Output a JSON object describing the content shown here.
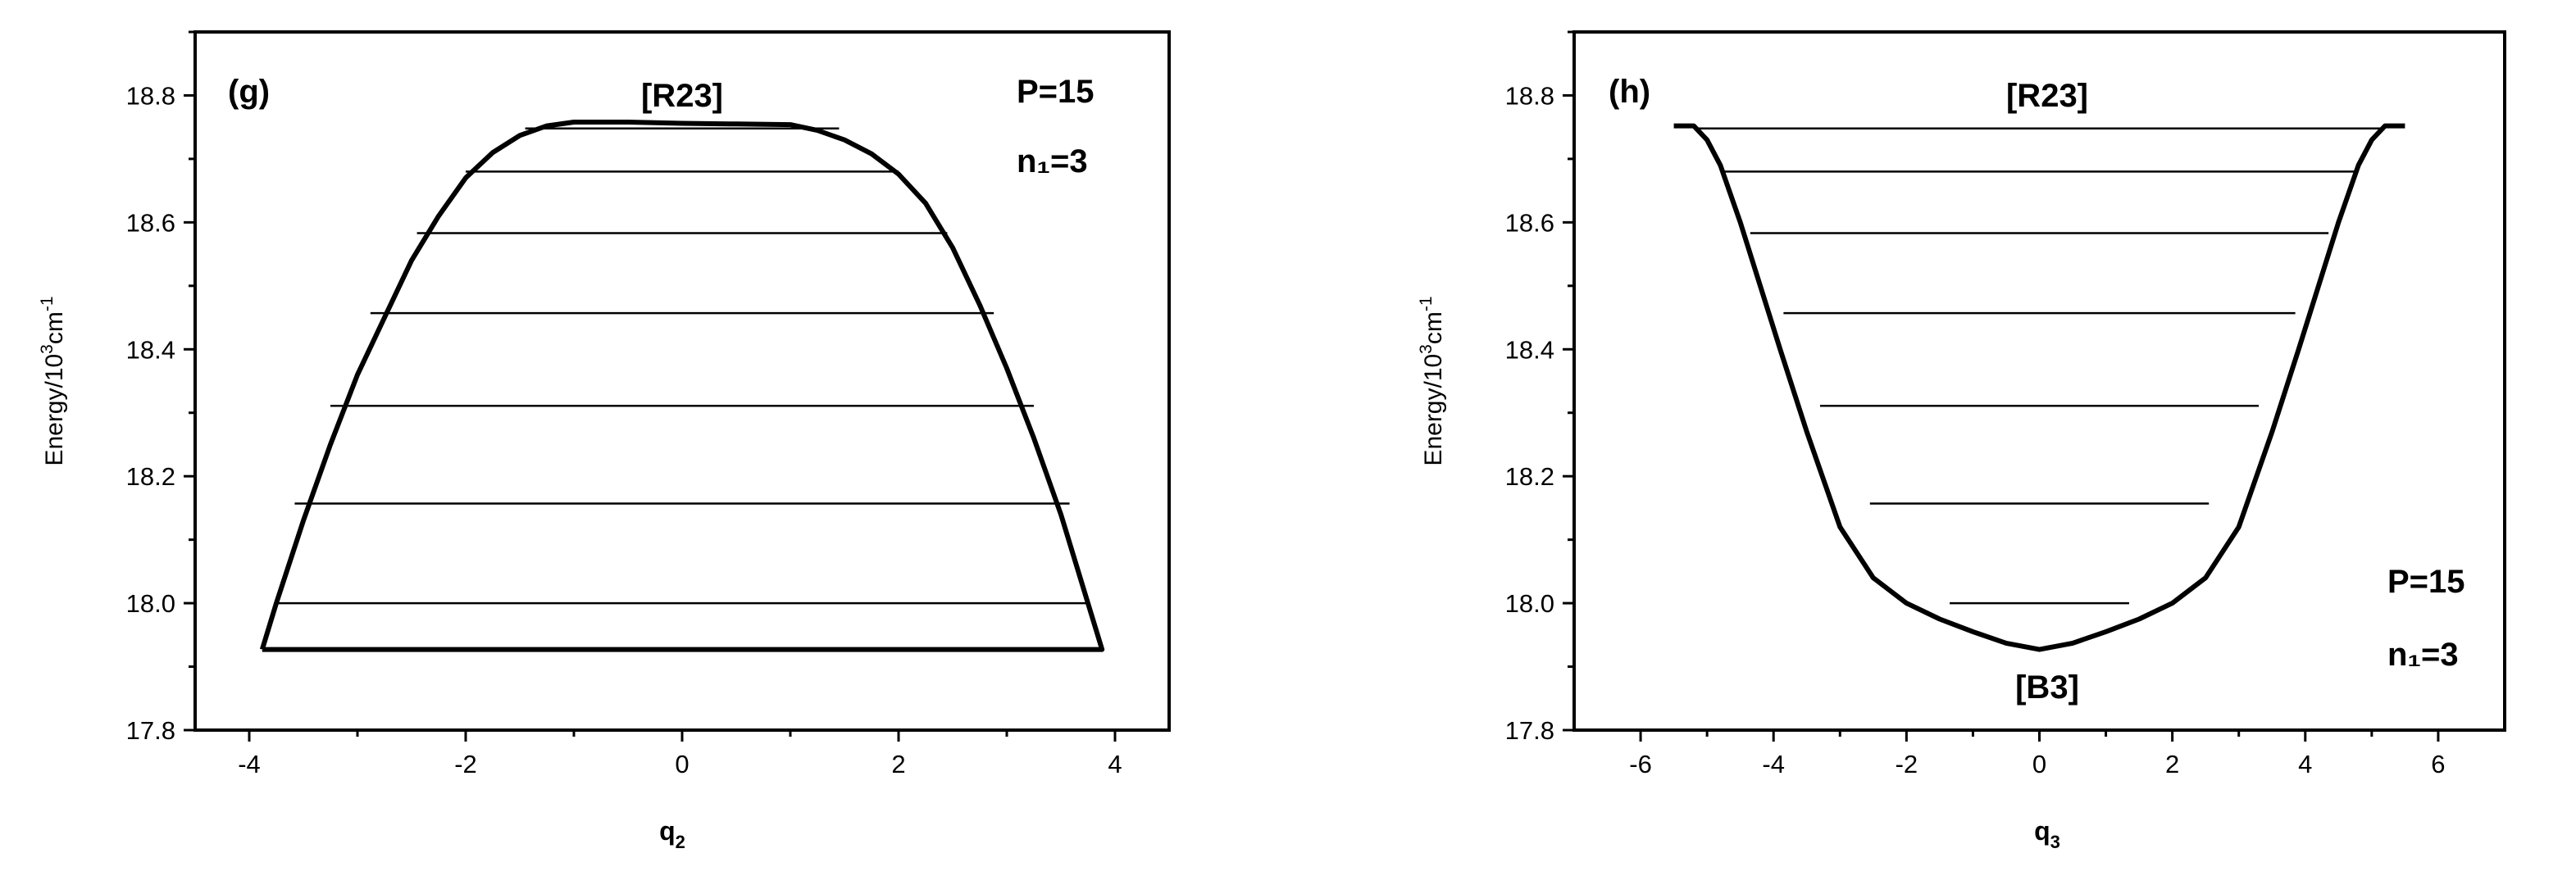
{
  "chart_data": [
    {
      "type": "line",
      "panel_label": "(g)",
      "xlabel": "q",
      "xlabel_sub": "2",
      "ylabel": "Energy/10",
      "ylabel_sup": "3",
      "ylabel_unit": "cm",
      "ylabel_unit_sup": "-1",
      "xlim": [
        -4.5,
        4.5
      ],
      "ylim": [
        17.8,
        18.9
      ],
      "xticks": [
        -4,
        -2,
        0,
        2,
        4
      ],
      "xtick_labels": [
        "-4",
        "-2",
        "0",
        "2",
        "4"
      ],
      "yticks": [
        17.8,
        18.0,
        18.2,
        18.4,
        18.6,
        18.8
      ],
      "ytick_labels": [
        "17.8",
        "18.0",
        "18.2",
        "18.4",
        "18.6",
        "18.8"
      ],
      "annotations": [
        {
          "text": "[R23]",
          "x": 0,
          "y": 18.8
        },
        {
          "text": "P=15",
          "x": 3.3,
          "y": 18.8
        },
        {
          "text": "n₁=3",
          "x": 3.3,
          "y": 18.69
        }
      ],
      "series": [
        {
          "x": [
            -3.88,
            -3.75,
            -3.5,
            -3.25,
            -3.0,
            -2.75,
            -2.5,
            -2.25,
            -2.0,
            -1.75,
            -1.5,
            -1.25,
            -1.0,
            -0.5,
            0,
            0.5,
            1.0,
            1.25,
            1.5,
            1.75,
            2.0,
            2.25,
            2.5,
            2.75,
            3.0,
            3.25,
            3.5,
            3.75,
            3.88,
            -3.88
          ],
          "y": [
            17.927,
            18.0,
            18.13,
            18.25,
            18.36,
            18.45,
            18.54,
            18.61,
            18.67,
            18.71,
            18.737,
            18.752,
            18.758,
            18.758,
            18.756,
            18.755,
            18.754,
            18.745,
            18.73,
            18.708,
            18.676,
            18.63,
            18.56,
            18.47,
            18.37,
            18.26,
            18.14,
            18.0,
            17.927,
            17.927
          ]
        }
      ],
      "levels": [
        {
          "y": 18.0,
          "x_left": -3.75,
          "x_right": 3.75
        },
        {
          "y": 18.157,
          "x_left": -3.58,
          "x_right": 3.58
        },
        {
          "y": 18.311,
          "x_left": -3.25,
          "x_right": 3.25
        },
        {
          "y": 18.457,
          "x_left": -2.88,
          "x_right": 2.88
        },
        {
          "y": 18.583,
          "x_left": -2.45,
          "x_right": 2.45
        },
        {
          "y": 18.68,
          "x_left": -2.0,
          "x_right": 2.0
        },
        {
          "y": 18.748,
          "x_left": -1.45,
          "x_right": 1.45
        }
      ]
    },
    {
      "type": "line",
      "panel_label": "(h)",
      "xlabel": "q",
      "xlabel_sub": "3",
      "ylabel": "Energy/10",
      "ylabel_sup": "3",
      "ylabel_unit": "cm",
      "ylabel_unit_sup": "-1",
      "xlim": [
        -7,
        7
      ],
      "ylim": [
        17.8,
        18.9
      ],
      "xticks": [
        -6,
        -4,
        -2,
        0,
        2,
        4,
        6
      ],
      "xtick_labels": [
        "-6",
        "-4",
        "-2",
        "0",
        "2",
        "4",
        "6"
      ],
      "yticks": [
        17.8,
        18.0,
        18.2,
        18.4,
        18.6,
        18.8
      ],
      "ytick_labels": [
        "17.8",
        "18.0",
        "18.2",
        "18.4",
        "18.6",
        "18.8"
      ],
      "annotations": [
        {
          "text": "[R23]",
          "x": 0,
          "y": 18.8
        },
        {
          "text": "[B3]",
          "x": 0,
          "y": 17.85
        },
        {
          "text": "P=15",
          "x": 5.5,
          "y": 18.03
        },
        {
          "text": "n₁=3",
          "x": 5.5,
          "y": 17.92
        }
      ],
      "series": [
        {
          "x": [
            -5.5,
            -5.2,
            -5.0,
            -4.8,
            -4.5,
            -4.2,
            -3.9,
            -3.5,
            -3.0,
            -2.5,
            -2.0,
            -1.5,
            -1.0,
            -0.5,
            0,
            0.5,
            1.0,
            1.5,
            2.0,
            2.5,
            3.0,
            3.5,
            3.9,
            4.2,
            4.5,
            4.8,
            5.0,
            5.2,
            5.5
          ],
          "y": [
            18.752,
            18.752,
            18.73,
            18.69,
            18.6,
            18.5,
            18.4,
            18.27,
            18.12,
            18.04,
            18.0,
            17.975,
            17.955,
            17.937,
            17.927,
            17.937,
            17.955,
            17.975,
            18.0,
            18.04,
            18.12,
            18.27,
            18.4,
            18.5,
            18.6,
            18.69,
            18.73,
            18.752,
            18.752
          ]
        }
      ],
      "levels": [
        {
          "y": 18.0,
          "x_left": -1.35,
          "x_right": 1.35
        },
        {
          "y": 18.157,
          "x_left": -2.55,
          "x_right": 2.55
        },
        {
          "y": 18.311,
          "x_left": -3.3,
          "x_right": 3.3
        },
        {
          "y": 18.457,
          "x_left": -3.85,
          "x_right": 3.85
        },
        {
          "y": 18.583,
          "x_left": -4.35,
          "x_right": 4.35
        },
        {
          "y": 18.68,
          "x_left": -4.75,
          "x_right": 4.75
        },
        {
          "y": 18.748,
          "x_left": -5.15,
          "x_right": 5.15
        }
      ]
    }
  ]
}
